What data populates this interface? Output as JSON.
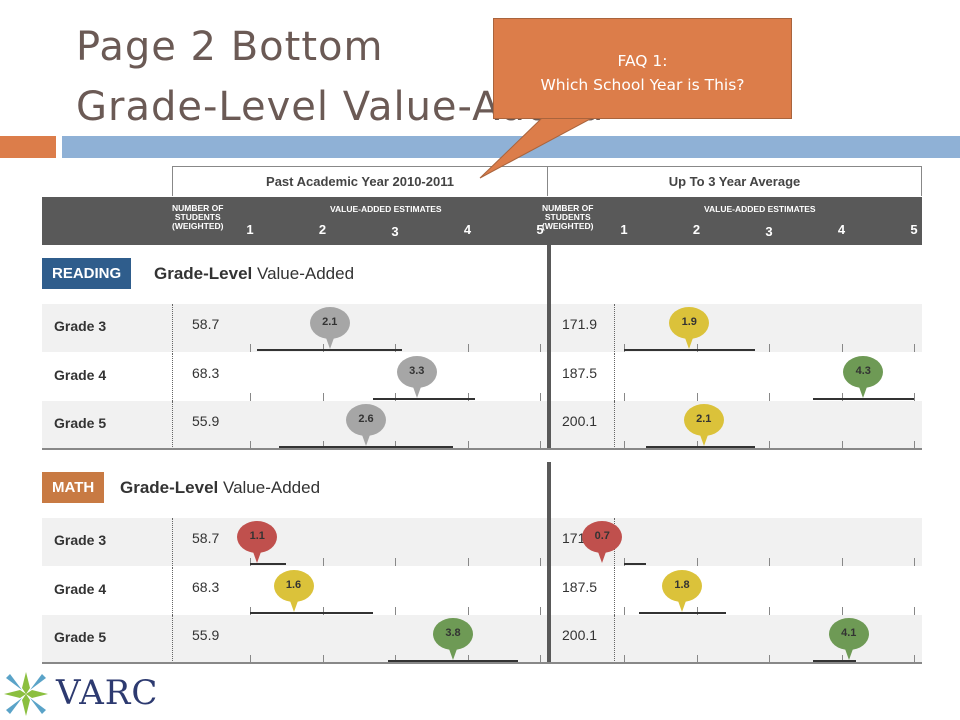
{
  "slide": {
    "title_line1": "Page 2 Bottom",
    "title_line2": "Grade-Level Value-Added",
    "callout_line1": "FAQ 1:",
    "callout_line2": "Which School Year is This?"
  },
  "logo": {
    "text": "VARC",
    "icon": "varc-star-icon"
  },
  "colors": {
    "orange": "#dc7d4a",
    "blue": "#8fb1d6",
    "reading": "#2f5d8c",
    "math": "#c87a43",
    "red": "#c0504d",
    "yellow": "#dbc23a",
    "green": "#6e9a55",
    "gray": "#a6a6a6"
  },
  "chart_data": {
    "type": "table",
    "scale": [
      1,
      5
    ],
    "periods": [
      {
        "key": "past",
        "header": "Past Academic Year 2010-2011",
        "count_header": "NUMBER OF\nSTUDENTS\n(WEIGHTED)",
        "estimates_header": "VALUE-ADDED ESTIMATES",
        "ticks": [
          "1",
          "2",
          "3",
          "4",
          "5"
        ]
      },
      {
        "key": "avg",
        "header": "Up To 3 Year Average",
        "count_header": "NUMBER OF\nSTUDENTS\n(WEIGHTED)",
        "estimates_header": "VALUE-ADDED ESTIMATES",
        "ticks": [
          "1",
          "2",
          "3",
          "4",
          "5"
        ]
      }
    ],
    "sections": [
      {
        "badge": "READING",
        "title_bold": "Grade-Level",
        "title_rest": " Value-Added",
        "color": "#2f5d8c",
        "rows": [
          {
            "grade": "Grade 3",
            "past": {
              "n": "58.7",
              "label": "2.1",
              "value": 2.1,
              "ci": [
                1.1,
                3.1
              ],
              "color": "#a6a6a6"
            },
            "avg": {
              "n": "171.9",
              "label": "1.9",
              "value": 1.9,
              "ci": [
                1.0,
                2.8
              ],
              "color": "#dbc23a"
            }
          },
          {
            "grade": "Grade 4",
            "past": {
              "n": "68.3",
              "label": "3.3",
              "value": 3.3,
              "ci": [
                2.7,
                4.1
              ],
              "color": "#a6a6a6"
            },
            "avg": {
              "n": "187.5",
              "label": "4.3",
              "value": 4.3,
              "ci": [
                3.6,
                5.0
              ],
              "color": "#6e9a55"
            }
          },
          {
            "grade": "Grade 5",
            "past": {
              "n": "55.9",
              "label": "2.6",
              "value": 2.6,
              "ci": [
                1.4,
                3.8
              ],
              "color": "#a6a6a6"
            },
            "avg": {
              "n": "200.1",
              "label": "2.1",
              "value": 2.1,
              "ci": [
                1.3,
                2.8
              ],
              "color": "#dbc23a"
            }
          }
        ]
      },
      {
        "badge": "MATH",
        "title_bold": "Grade-Level",
        "title_rest": " Value-Added",
        "color": "#c87a43",
        "rows": [
          {
            "grade": "Grade 3",
            "past": {
              "n": "58.7",
              "label": "1.1",
              "value": 1.1,
              "ci": [
                1.0,
                1.5
              ],
              "color": "#c0504d"
            },
            "avg": {
              "n": "171.9",
              "label": "0.7",
              "value": 0.7,
              "ci": [
                1.0,
                1.3
              ],
              "color": "#c0504d"
            }
          },
          {
            "grade": "Grade 4",
            "past": {
              "n": "68.3",
              "label": "1.6",
              "value": 1.6,
              "ci": [
                1.0,
                2.7
              ],
              "color": "#dbc23a"
            },
            "avg": {
              "n": "187.5",
              "label": "1.8",
              "value": 1.8,
              "ci": [
                1.2,
                2.4
              ],
              "color": "#dbc23a"
            }
          },
          {
            "grade": "Grade 5",
            "past": {
              "n": "55.9",
              "label": "3.8",
              "value": 3.8,
              "ci": [
                2.9,
                4.7
              ],
              "color": "#6e9a55"
            },
            "avg": {
              "n": "200.1",
              "label": "4.1",
              "value": 4.1,
              "ci": [
                3.6,
                4.2
              ],
              "color": "#6e9a55"
            }
          }
        ]
      }
    ]
  }
}
